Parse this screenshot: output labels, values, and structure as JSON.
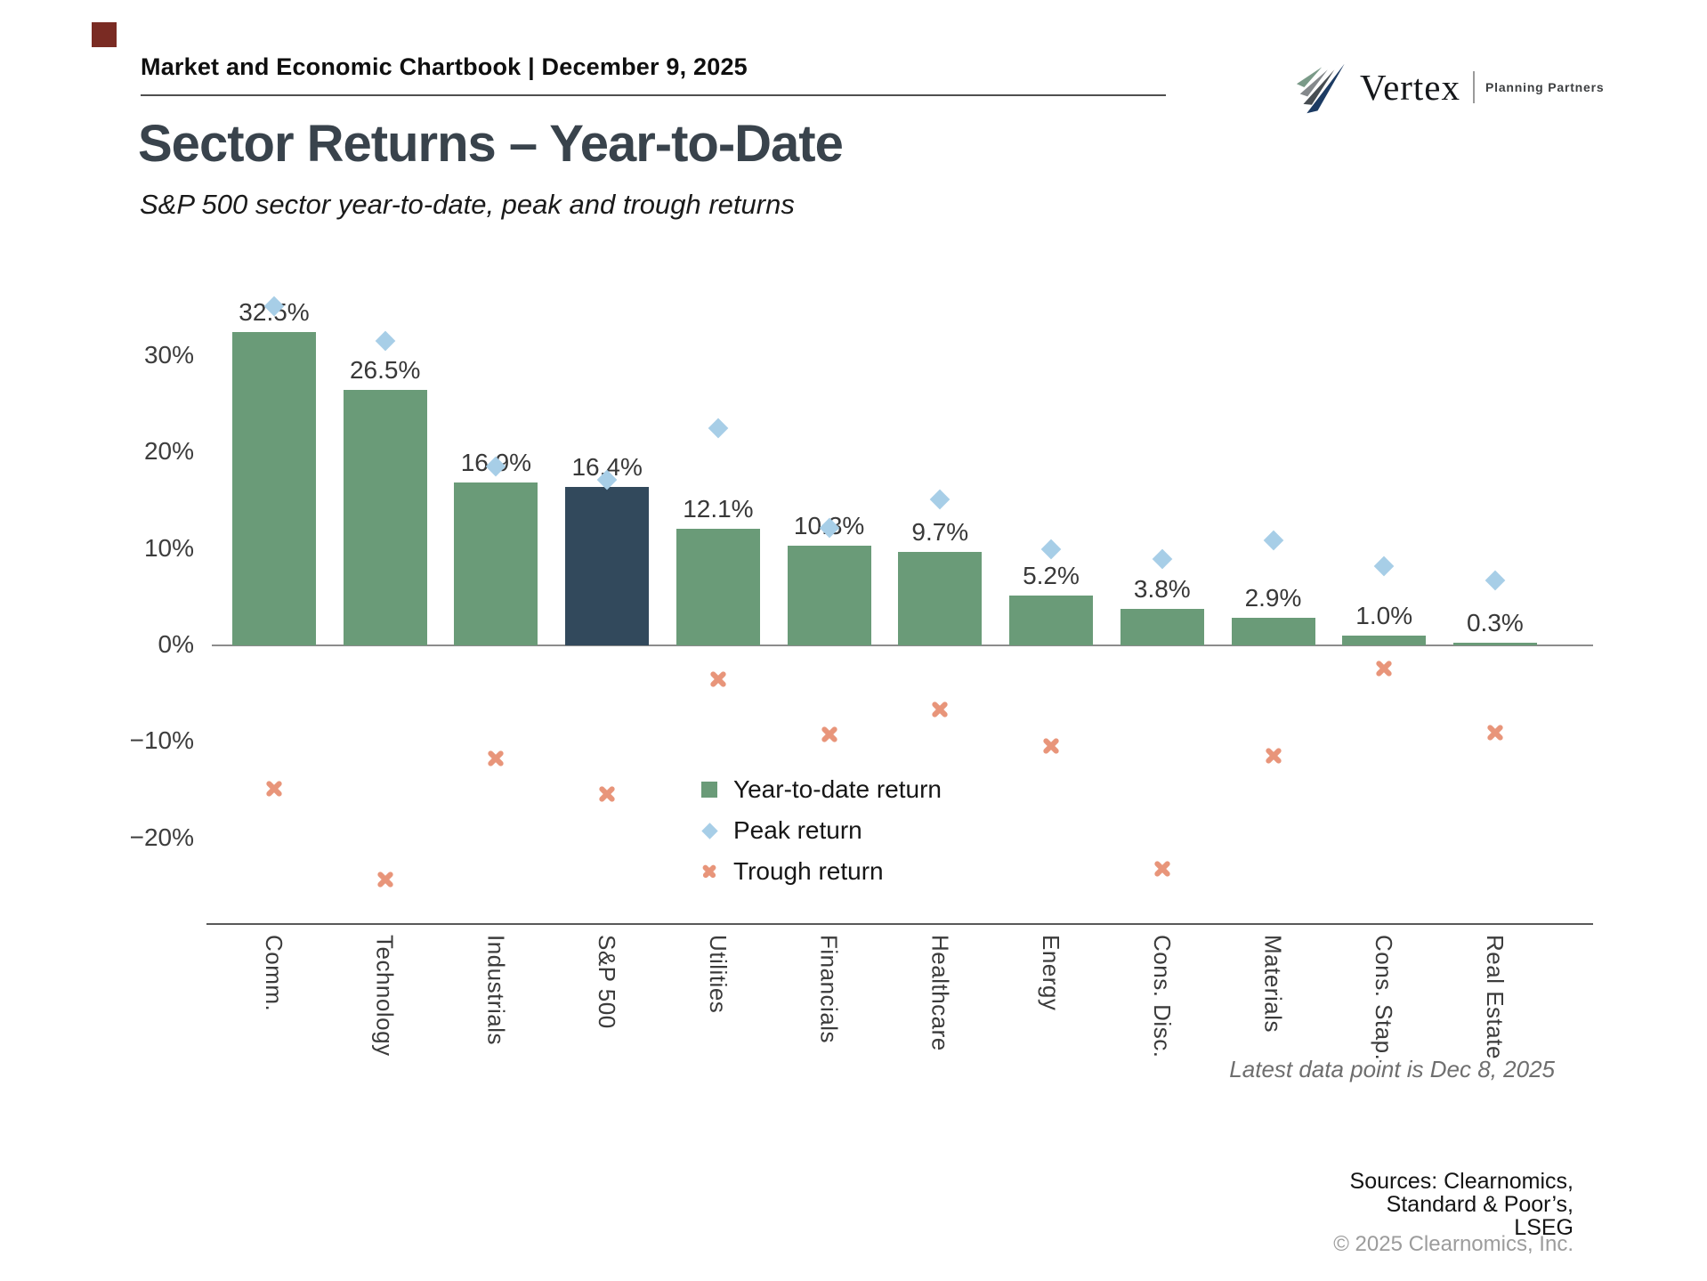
{
  "header": {
    "chartbook_title": "Market and Economic Chartbook | December 9, 2025"
  },
  "logo": {
    "brand": "Vertex",
    "tagline": "Planning Partners"
  },
  "title": "Sector Returns – Year-to-Date",
  "subtitle": "S&P 500 sector year-to-date, peak and trough returns",
  "colors": {
    "bar_green": "#6a9b78",
    "bar_navy": "#32495c",
    "peak_blue": "#a7cee7",
    "trough_orange": "#e8957a",
    "accent_square": "#7a2b23"
  },
  "chart_data": {
    "type": "bar",
    "title": "Sector Returns – Year-to-Date",
    "subtitle": "S&P 500 sector year-to-date, peak and trough returns",
    "categories": [
      "Comm.",
      "Technology",
      "Industrials",
      "S&P 500",
      "Utilities",
      "Financials",
      "Healthcare",
      "Energy",
      "Cons. Disc.",
      "Materials",
      "Cons. Stap.",
      "Real Estate"
    ],
    "highlight_category": "S&P 500",
    "series": [
      {
        "name": "Year-to-date return",
        "type": "bar",
        "values": [
          32.5,
          26.5,
          16.9,
          16.4,
          12.1,
          10.3,
          9.7,
          5.2,
          3.8,
          2.9,
          1.0,
          0.3
        ],
        "labels": [
          "32.5%",
          "26.5%",
          "16.9%",
          "16.4%",
          "12.1%",
          "10.3%",
          "9.7%",
          "5.2%",
          "3.8%",
          "2.9%",
          "1.0%",
          "0.3%"
        ]
      },
      {
        "name": "Peak return",
        "type": "scatter-diamond",
        "values": [
          35.2,
          31.6,
          18.6,
          17.2,
          22.5,
          12.2,
          15.1,
          10.0,
          9.0,
          10.9,
          8.2,
          6.7
        ]
      },
      {
        "name": "Trough return",
        "type": "scatter-x",
        "values": [
          -14.9,
          -24.3,
          -11.7,
          -15.4,
          -3.5,
          -9.2,
          -6.6,
          -10.4,
          -23.2,
          -11.4,
          -2.4,
          -9.0
        ]
      }
    ],
    "y_ticks": [
      {
        "label": "30%",
        "value": 30
      },
      {
        "label": "20%",
        "value": 20
      },
      {
        "label": "10%",
        "value": 10
      },
      {
        "label": "0%",
        "value": 0
      },
      {
        "label": "−10%",
        "value": -10
      },
      {
        "label": "−20%",
        "value": -20
      }
    ],
    "ylim": [
      -27,
      37
    ],
    "grid": false,
    "legend_position": "inside-center-left"
  },
  "footer": {
    "latest_note": "Latest data point is Dec 8, 2025",
    "sources_line1": "Sources: Clearnomics,",
    "sources_line2": "Standard & Poor’s,",
    "sources_line3": "LSEG",
    "copyright": "© 2025 Clearnomics, Inc."
  }
}
